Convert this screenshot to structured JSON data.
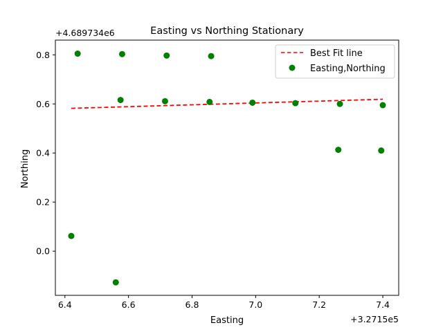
{
  "chart_data": {
    "type": "scatter",
    "title": "Easting vs Northing Stationary",
    "xlabel": "Easting",
    "ylabel": "Northing",
    "x_offset_label": "+3.2715e5",
    "y_offset_label": "+4.689734e6",
    "xlim": [
      6.37,
      7.45
    ],
    "ylim": [
      -0.18,
      0.86
    ],
    "xticks": [
      6.4,
      6.6,
      6.8,
      7.0,
      7.2,
      7.4
    ],
    "xtick_labels": [
      "6.4",
      "6.6",
      "6.8",
      "7.0",
      "7.2",
      "7.4"
    ],
    "yticks": [
      0.0,
      0.2,
      0.4,
      0.6,
      0.8
    ],
    "ytick_labels": [
      "0.0",
      "0.2",
      "0.4",
      "0.6",
      "0.8"
    ],
    "grid": false,
    "legend_position": "top-right",
    "series": [
      {
        "name": "Best Fit line",
        "kind": "line",
        "style": "dashed",
        "color": "#ff0000",
        "x": [
          6.42,
          7.4
        ],
        "y": [
          0.582,
          0.619
        ]
      },
      {
        "name": "Easting,Northing",
        "kind": "scatter",
        "color": "#008000",
        "x": [
          6.44,
          6.58,
          6.72,
          6.86,
          6.575,
          6.715,
          6.855,
          6.99,
          7.125,
          7.265,
          7.4,
          7.26,
          7.395,
          6.42,
          6.56
        ],
        "y": [
          0.805,
          0.803,
          0.797,
          0.795,
          0.616,
          0.611,
          0.608,
          0.605,
          0.603,
          0.6,
          0.595,
          0.413,
          0.41,
          0.062,
          -0.127
        ]
      }
    ]
  }
}
